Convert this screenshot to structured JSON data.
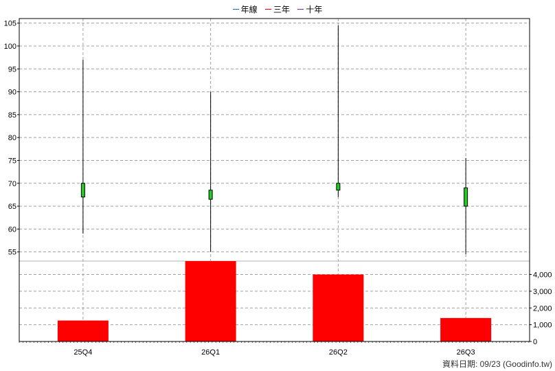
{
  "legend": [
    {
      "label": "年線",
      "color": "#1f5fbf"
    },
    {
      "label": "三年",
      "color": "#e00000"
    },
    {
      "label": "十年",
      "color": "#7a1fa2"
    }
  ],
  "footer": "資料日期: 09/23  (Goodinfo.tw)",
  "chart_data": {
    "type": "candlestick+bar",
    "categories": [
      "25Q4",
      "26Q1",
      "26Q2",
      "26Q3"
    ],
    "price": {
      "ylim": [
        53,
        106
      ],
      "ticks": [
        55,
        60,
        65,
        70,
        75,
        80,
        85,
        90,
        95,
        100,
        105
      ],
      "candles": [
        {
          "open": 67.0,
          "close": 70.0,
          "high": 97.0,
          "low": 59.0
        },
        {
          "open": 66.5,
          "close": 68.5,
          "high": 90.0,
          "low": 55.0
        },
        {
          "open": 68.5,
          "close": 70.0,
          "high": 104.5,
          "low": 67.0
        },
        {
          "open": 65.0,
          "close": 69.0,
          "high": 75.5,
          "low": 54.5
        }
      ],
      "candle_color": "#22cc22"
    },
    "volume": {
      "ylim": [
        0,
        4800
      ],
      "ticks": [
        0,
        1000,
        2000,
        3000,
        4000
      ],
      "tick_labels": [
        "0",
        "1,000",
        "2,000",
        "3,000",
        "4,000"
      ],
      "values": [
        1250,
        4800,
        4000,
        1400
      ],
      "bar_color": "#ff0000"
    },
    "grid": true
  }
}
